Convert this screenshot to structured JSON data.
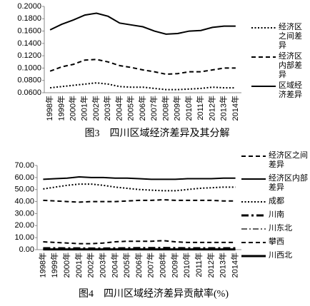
{
  "chart_data": [
    {
      "type": "line",
      "title": "图3　四川区域经济差异及其分解",
      "categories": [
        "1998年",
        "1999年",
        "2000年",
        "2001年",
        "2002年",
        "2003年",
        "2004年",
        "2005年",
        "2006年",
        "2007年",
        "2008年",
        "2009年",
        "2010年",
        "2011年",
        "2012年",
        "2013年",
        "2014年"
      ],
      "ylim": [
        0.06,
        0.2
      ],
      "yticks": [
        {
          "value": 0.06,
          "label": "0.0600"
        },
        {
          "value": 0.08,
          "label": "0.0800"
        },
        {
          "value": 0.1,
          "label": "0.1000"
        },
        {
          "value": 0.12,
          "label": "0.1200"
        },
        {
          "value": 0.14,
          "label": "0.1400"
        },
        {
          "value": 0.16,
          "label": "0.1600"
        },
        {
          "value": 0.18,
          "label": "0.1800"
        },
        {
          "value": 0.2,
          "label": "0.2000"
        }
      ],
      "series": [
        {
          "name": "经济区之间差异",
          "color": "#000000",
          "dash": "dotted",
          "values": [
            0.068,
            0.07,
            0.072,
            0.074,
            0.076,
            0.074,
            0.07,
            0.069,
            0.069,
            0.067,
            0.065,
            0.065,
            0.066,
            0.067,
            0.069,
            0.068,
            0.068
          ]
        },
        {
          "name": "经济区内部差异",
          "color": "#000000",
          "dash": "dashed",
          "values": [
            0.095,
            0.102,
            0.106,
            0.113,
            0.114,
            0.11,
            0.104,
            0.101,
            0.097,
            0.094,
            0.09,
            0.091,
            0.094,
            0.094,
            0.097,
            0.1,
            0.1
          ]
        },
        {
          "name": "区域经济差异",
          "color": "#000000",
          "dash": "solid",
          "values": [
            0.162,
            0.171,
            0.178,
            0.186,
            0.189,
            0.184,
            0.173,
            0.17,
            0.167,
            0.16,
            0.155,
            0.156,
            0.16,
            0.161,
            0.166,
            0.168,
            0.168
          ]
        }
      ]
    },
    {
      "type": "line",
      "title": "图4　四川区域经济差异贡献率(%)",
      "categories": [
        "1998年",
        "1999年",
        "2000年",
        "2001年",
        "2002年",
        "2003年",
        "2004年",
        "2005年",
        "2006年",
        "2007年",
        "2008年",
        "2009年",
        "2010年",
        "2011年",
        "2012年",
        "2013年",
        "2014年"
      ],
      "ylim": [
        0,
        70
      ],
      "yticks": [
        {
          "value": 0,
          "label": "0.00"
        },
        {
          "value": 10,
          "label": "10.00"
        },
        {
          "value": 20,
          "label": "20.00"
        },
        {
          "value": 30,
          "label": "30.00"
        },
        {
          "value": 40,
          "label": "40.00"
        },
        {
          "value": 50,
          "label": "50.00"
        },
        {
          "value": 60,
          "label": "60.00"
        },
        {
          "value": 70,
          "label": "70.00"
        }
      ],
      "series": [
        {
          "name": "经济区之间差异",
          "color": "#000000",
          "dash": "dashed",
          "values": [
            41,
            40.5,
            40,
            39.5,
            40,
            40,
            40,
            40.5,
            41,
            41,
            41.5,
            41,
            41,
            41,
            41,
            40.5,
            40.5
          ]
        },
        {
          "name": "经济区内部差异",
          "color": "#000000",
          "dash": "solid",
          "values": [
            58.5,
            59,
            59.5,
            60.5,
            60,
            60,
            59.5,
            59.5,
            59,
            58.5,
            58.5,
            58.5,
            59,
            59,
            59,
            59.5,
            59.5
          ]
        },
        {
          "name": "成都",
          "color": "#000000",
          "dash": "dotted",
          "values": [
            50.5,
            52,
            53.5,
            54.5,
            54.5,
            53.5,
            52,
            51,
            50,
            49.5,
            49,
            49,
            50,
            51,
            51.5,
            52,
            52
          ]
        },
        {
          "name": "川南",
          "color": "#000000",
          "dash": "dashdot-thick",
          "values": [
            1.2,
            1.2,
            1.1,
            1.1,
            1.0,
            1.0,
            1.1,
            1.2,
            1.3,
            1.3,
            1.4,
            1.3,
            1.2,
            1.2,
            1.2,
            1.2,
            1.2
          ]
        },
        {
          "name": "川东北",
          "color": "#000000",
          "dash": "dashdot",
          "values": [
            0.5,
            0.5,
            0.5,
            0.4,
            0.4,
            0.4,
            0.5,
            0.5,
            0.5,
            0.5,
            0.6,
            0.5,
            0.5,
            0.5,
            0.5,
            0.5,
            0.5
          ]
        },
        {
          "name": "攀西",
          "color": "#000000",
          "dash": "dashed",
          "values": [
            6.5,
            6,
            5.5,
            5,
            5,
            5.5,
            6.5,
            7,
            7,
            7,
            7.5,
            6.5,
            6,
            6,
            6,
            6,
            6
          ]
        },
        {
          "name": "川西北",
          "color": "#000000",
          "dash": "solid-thick",
          "values": [
            0.2,
            0.2,
            0.2,
            0.2,
            0.2,
            0.2,
            0.2,
            0.2,
            0.2,
            0.2,
            0.2,
            0.2,
            0.2,
            0.2,
            0.2,
            0.2,
            0.2
          ]
        }
      ]
    }
  ]
}
